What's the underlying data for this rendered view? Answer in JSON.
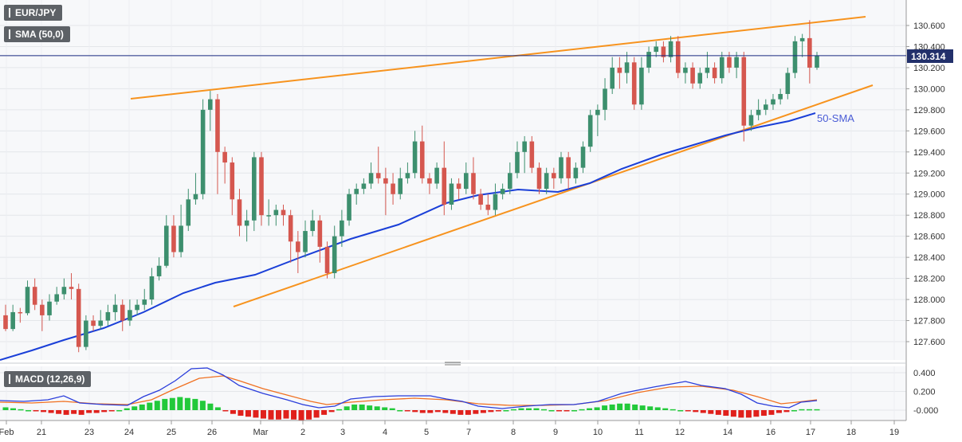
{
  "legend": {
    "symbol": "EUR/JPY",
    "sma_label": "SMA (50,0)",
    "macd_label": "MACD (12,26,9)"
  },
  "annotations": {
    "sma_tag": "50-SMA",
    "last_price": "130.314"
  },
  "colors": {
    "up_candle": "#3d8f6e",
    "down_candle": "#d5574f",
    "sma": "#1a3fd8",
    "trendline": "#f7931e",
    "price_line": "#1a2a80",
    "price_tag": "#22306b",
    "macd_line": "#2a3ddb",
    "signal_line": "#f07020",
    "hist_pos": "#22c93a",
    "hist_neg": "#e0201c"
  },
  "chart_data": [
    {
      "type": "candlestick",
      "title": "EUR/JPY",
      "ylim": [
        127.45,
        130.78
      ],
      "y_ticks": [
        "130.600",
        "130.400",
        "130.200",
        "130.000",
        "129.800",
        "129.600",
        "129.400",
        "129.200",
        "129.000",
        "128.800",
        "128.600",
        "128.400",
        "128.200",
        "128.000",
        "127.800",
        "127.600"
      ],
      "x_ticks": [
        "Feb",
        "21",
        "23",
        "24",
        "25",
        "26",
        "Mar",
        "2",
        "3",
        "4",
        "5",
        "7",
        "8",
        "9",
        "10",
        "11",
        "12",
        "14",
        "16",
        "17",
        "18",
        "19",
        "21"
      ],
      "current_price": 130.314,
      "candles": [
        [
          127.85,
          127.72,
          127.95,
          127.7
        ],
        [
          127.72,
          127.88,
          127.95,
          127.7
        ],
        [
          127.88,
          127.87,
          127.92,
          127.78
        ],
        [
          127.87,
          128.12,
          128.18,
          127.85
        ],
        [
          128.12,
          127.95,
          128.2,
          127.9
        ],
        [
          127.95,
          127.85,
          128.0,
          127.7
        ],
        [
          127.85,
          127.98,
          128.05,
          127.8
        ],
        [
          127.98,
          128.05,
          128.12,
          127.95
        ],
        [
          128.05,
          128.12,
          128.2,
          128.0
        ],
        [
          128.12,
          128.1,
          128.25,
          128.0
        ],
        [
          128.1,
          127.55,
          128.15,
          127.5
        ],
        [
          127.55,
          127.8,
          127.85,
          127.52
        ],
        [
          127.8,
          127.75,
          127.85,
          127.7
        ],
        [
          127.75,
          127.8,
          127.9,
          127.72
        ],
        [
          127.8,
          127.88,
          127.95,
          127.75
        ],
        [
          127.88,
          127.95,
          128.05,
          127.8
        ],
        [
          127.95,
          127.8,
          128.0,
          127.7
        ],
        [
          127.8,
          127.9,
          128.0,
          127.75
        ],
        [
          127.9,
          127.95,
          128.0,
          127.85
        ],
        [
          127.95,
          128.0,
          128.1,
          127.9
        ],
        [
          128.0,
          128.22,
          128.3,
          127.95
        ],
        [
          128.22,
          128.32,
          128.4,
          128.18
        ],
        [
          128.32,
          128.7,
          128.8,
          128.3
        ],
        [
          128.7,
          128.45,
          128.8,
          128.4
        ],
        [
          128.45,
          128.7,
          128.9,
          128.4
        ],
        [
          128.7,
          128.95,
          129.05,
          128.65
        ],
        [
          128.95,
          129.0,
          129.2,
          128.9
        ],
        [
          129.0,
          129.8,
          129.9,
          128.95
        ],
        [
          129.8,
          129.9,
          129.98,
          129.6
        ],
        [
          129.9,
          129.4,
          129.95,
          129.0
        ],
        [
          129.4,
          129.3,
          129.45,
          129.1
        ],
        [
          129.3,
          128.95,
          129.35,
          128.8
        ],
        [
          128.95,
          128.7,
          129.05,
          128.6
        ],
        [
          128.7,
          128.75,
          128.85,
          128.55
        ],
        [
          128.75,
          129.35,
          129.4,
          128.65
        ],
        [
          129.35,
          128.8,
          129.4,
          128.7
        ],
        [
          128.8,
          128.8,
          128.95,
          128.7
        ],
        [
          128.8,
          128.85,
          128.9,
          128.7
        ],
        [
          128.85,
          128.8,
          128.9,
          128.7
        ],
        [
          128.8,
          128.55,
          128.85,
          128.35
        ],
        [
          128.55,
          128.45,
          128.65,
          128.25
        ],
        [
          128.45,
          128.65,
          128.75,
          128.4
        ],
        [
          128.65,
          128.75,
          128.85,
          128.6
        ],
        [
          128.75,
          128.5,
          128.8,
          128.35
        ],
        [
          128.5,
          128.25,
          128.55,
          128.2
        ],
        [
          128.25,
          128.6,
          128.7,
          128.2
        ],
        [
          128.6,
          128.75,
          128.85,
          128.5
        ],
        [
          128.75,
          129.0,
          129.05,
          128.7
        ],
        [
          129.0,
          129.05,
          129.1,
          128.9
        ],
        [
          129.05,
          129.1,
          129.15,
          129.0
        ],
        [
          129.1,
          129.2,
          129.3,
          129.05
        ],
        [
          129.2,
          129.15,
          129.45,
          129.1
        ],
        [
          129.15,
          129.1,
          129.25,
          128.8
        ],
        [
          129.1,
          129.0,
          129.2,
          128.9
        ],
        [
          129.0,
          129.15,
          129.25,
          128.95
        ],
        [
          129.15,
          129.2,
          129.3,
          129.1
        ],
        [
          129.2,
          129.5,
          129.6,
          129.15
        ],
        [
          129.5,
          129.15,
          129.65,
          129.1
        ],
        [
          129.15,
          129.1,
          129.2,
          129.0
        ],
        [
          129.1,
          129.25,
          129.3,
          129.05
        ],
        [
          129.25,
          128.9,
          129.5,
          128.8
        ],
        [
          128.9,
          129.1,
          129.15,
          128.85
        ],
        [
          129.1,
          129.05,
          129.15,
          128.95
        ],
        [
          129.05,
          129.2,
          129.3,
          129.0
        ],
        [
          129.2,
          129.0,
          129.35,
          128.95
        ],
        [
          129.0,
          128.9,
          129.05,
          128.85
        ],
        [
          128.9,
          128.85,
          129.0,
          128.8
        ],
        [
          128.85,
          129.0,
          129.1,
          128.8
        ],
        [
          129.0,
          129.05,
          129.1,
          128.95
        ],
        [
          129.05,
          129.2,
          129.3,
          129.0
        ],
        [
          129.2,
          129.4,
          129.5,
          129.15
        ],
        [
          129.4,
          129.5,
          129.55,
          129.2
        ],
        [
          129.5,
          129.25,
          129.55,
          129.2
        ],
        [
          129.25,
          129.05,
          129.3,
          129.0
        ],
        [
          129.05,
          129.2,
          129.25,
          129.0
        ],
        [
          129.2,
          129.15,
          129.25,
          129.05
        ],
        [
          129.15,
          129.35,
          129.4,
          129.1
        ],
        [
          129.35,
          129.15,
          129.4,
          129.05
        ],
        [
          129.15,
          129.25,
          129.3,
          129.1
        ],
        [
          129.25,
          129.45,
          129.5,
          129.2
        ],
        [
          129.45,
          129.75,
          129.8,
          129.4
        ],
        [
          129.75,
          129.8,
          129.85,
          129.55
        ],
        [
          129.8,
          130.0,
          130.1,
          129.7
        ],
        [
          130.0,
          130.2,
          130.3,
          129.95
        ],
        [
          130.2,
          130.15,
          130.3,
          130.0
        ],
        [
          130.15,
          130.25,
          130.35,
          130.05
        ],
        [
          130.25,
          129.85,
          130.3,
          129.8
        ],
        [
          129.85,
          130.2,
          130.3,
          129.8
        ],
        [
          130.2,
          130.35,
          130.4,
          130.15
        ],
        [
          130.35,
          130.4,
          130.45,
          130.3
        ],
        [
          130.4,
          130.3,
          130.45,
          130.25
        ],
        [
          130.3,
          130.45,
          130.5,
          130.25
        ],
        [
          130.45,
          130.15,
          130.5,
          130.1
        ],
        [
          130.15,
          130.2,
          130.25,
          130.05
        ],
        [
          130.2,
          130.05,
          130.25,
          130.0
        ],
        [
          130.05,
          130.15,
          130.2,
          130.0
        ],
        [
          130.15,
          130.2,
          130.35,
          130.1
        ],
        [
          130.2,
          130.1,
          130.25,
          130.05
        ],
        [
          130.1,
          130.3,
          130.35,
          130.05
        ],
        [
          130.3,
          130.2,
          130.35,
          130.15
        ],
        [
          130.2,
          130.3,
          130.35,
          130.1
        ],
        [
          130.3,
          129.65,
          130.35,
          129.5
        ],
        [
          129.65,
          129.75,
          129.8,
          129.6
        ],
        [
          129.75,
          129.8,
          129.9,
          129.7
        ],
        [
          129.8,
          129.85,
          129.9,
          129.75
        ],
        [
          129.85,
          129.9,
          129.95,
          129.8
        ],
        [
          129.9,
          129.95,
          130.0,
          129.85
        ],
        [
          129.95,
          130.15,
          130.2,
          129.9
        ],
        [
          130.15,
          130.45,
          130.5,
          130.1
        ],
        [
          130.45,
          130.48,
          130.52,
          130.3
        ],
        [
          130.48,
          130.2,
          130.65,
          130.05
        ],
        [
          130.2,
          130.314,
          130.35,
          130.18
        ]
      ]
    },
    {
      "type": "macd",
      "title": "MACD (12,26,9)",
      "ylim": [
        -0.08,
        0.44
      ],
      "y_ticks": [
        "0.400",
        "0.200",
        "-0.000"
      ]
    }
  ]
}
